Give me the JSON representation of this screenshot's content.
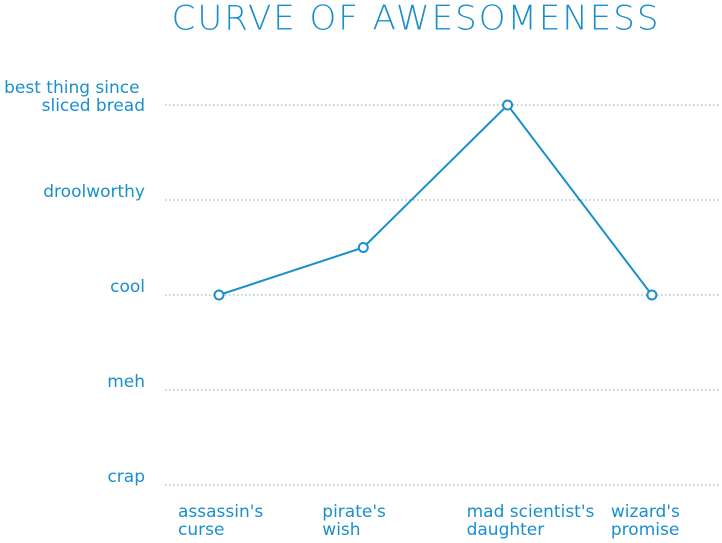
{
  "chart_data": {
    "type": "line",
    "title": "CURVE OF AWESOMENESS",
    "categories": [
      "assassin's curse",
      "pirate's wish",
      "mad scientist's daughter",
      "wizard's promise"
    ],
    "values": [
      2,
      2.5,
      4,
      2
    ],
    "color": "#1a8fcc",
    "ylim": [
      0,
      4
    ],
    "yticks": [
      {
        "value": 0,
        "label": "crap"
      },
      {
        "value": 1,
        "label": "meh"
      },
      {
        "value": 2,
        "label": "cool"
      },
      {
        "value": 3,
        "label": "droolworthy"
      },
      {
        "value": 4,
        "label": "best thing since sliced bread"
      }
    ],
    "grid": true
  }
}
